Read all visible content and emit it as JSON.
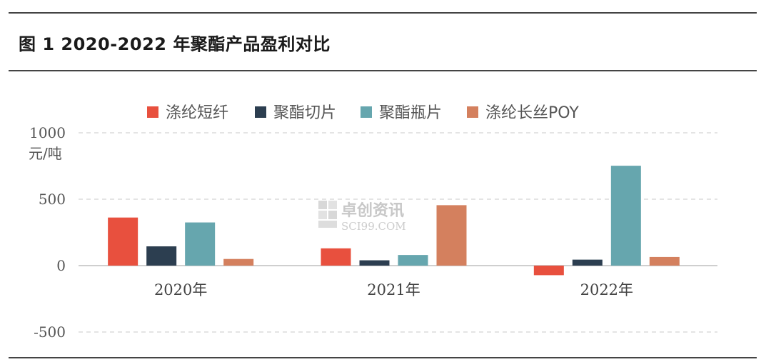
{
  "title": "图 1 2020-2022 年聚酯产品盈利对比",
  "watermark": {
    "cn": "卓创资讯",
    "en": "SCI99.COM"
  },
  "chart_data": {
    "type": "bar",
    "ylabel": "元/吨",
    "ylim": [
      -500,
      1000
    ],
    "yticks": [
      "1000",
      "500",
      "0",
      "-500"
    ],
    "ytick_values": [
      1000,
      500,
      0,
      -500
    ],
    "grid": true,
    "legend_position": "top",
    "categories": [
      "2020年",
      "2021年",
      "2022年"
    ],
    "series": [
      {
        "name": "涤纶短纤",
        "color": "#e8503e",
        "values": [
          362,
          130,
          -72
        ]
      },
      {
        "name": "聚酯切片",
        "color": "#2c3e50",
        "values": [
          145,
          40,
          45
        ]
      },
      {
        "name": "聚酯瓶片",
        "color": "#66a6ae",
        "values": [
          325,
          80,
          752
        ]
      },
      {
        "name": "涤纶长丝POY",
        "color": "#d4805e",
        "values": [
          50,
          455,
          65
        ]
      }
    ]
  }
}
